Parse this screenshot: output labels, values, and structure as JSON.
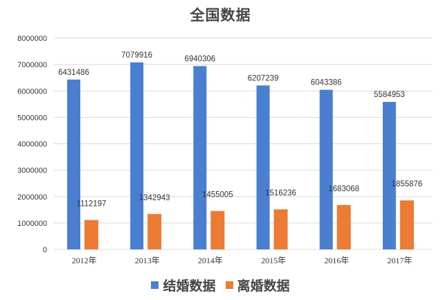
{
  "colors": {
    "marriage": "#4a7fd0",
    "divorce": "#ec7b34",
    "grid": "#d9d9d9"
  },
  "chart_data": {
    "type": "bar",
    "title": "全国数据",
    "categories": [
      "2012年",
      "2013年",
      "2014年",
      "2015年",
      "2016年",
      "2017年"
    ],
    "series": [
      {
        "name": "结婚数据",
        "values": [
          6431486,
          7079916,
          6940306,
          6207239,
          6043386,
          5584953
        ],
        "labels": [
          "6431486",
          "7079916",
          "6940306",
          "6207239",
          "6043386",
          "5584953"
        ]
      },
      {
        "name": "离婚数据",
        "values": [
          1112197,
          1342943,
          1455005,
          1516236,
          1683068,
          1855876
        ],
        "labels": [
          "1112197",
          "1342943",
          "1455005",
          "1516236",
          "1683068",
          "1855876"
        ]
      }
    ],
    "ylim": [
      0,
      8000000
    ],
    "yticks": [
      "0",
      "1000000",
      "2000000",
      "3000000",
      "4000000",
      "5000000",
      "6000000",
      "7000000",
      "8000000"
    ],
    "grid": true,
    "legend": "bottom"
  }
}
